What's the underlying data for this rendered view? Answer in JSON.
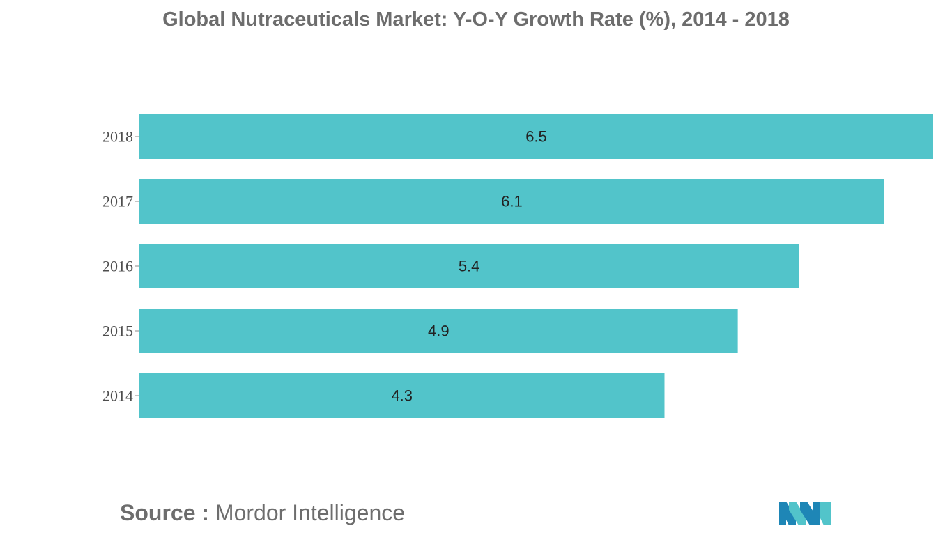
{
  "chart_data": {
    "type": "bar",
    "orientation": "horizontal",
    "title": "Global Nutraceuticals Market: Y-O-Y Growth Rate (%), 2014 - 2018",
    "categories": [
      "2018",
      "2017",
      "2016",
      "2015",
      "2014"
    ],
    "values": [
      6.5,
      6.1,
      5.4,
      4.9,
      4.3
    ],
    "value_labels": [
      "6.5",
      "6.1",
      "5.4",
      "4.9",
      "4.3"
    ],
    "xlabel": "",
    "ylabel": "",
    "xlim": [
      0,
      6.5
    ],
    "grid": false,
    "legend": "none",
    "bar_color": "#52c4ca"
  },
  "source": {
    "label": "Source :",
    "text": "Mordor Intelligence"
  },
  "logo": {
    "icon": "mordor-intelligence-logo-icon",
    "colors": [
      "#1e86b6",
      "#52c4ca"
    ]
  }
}
